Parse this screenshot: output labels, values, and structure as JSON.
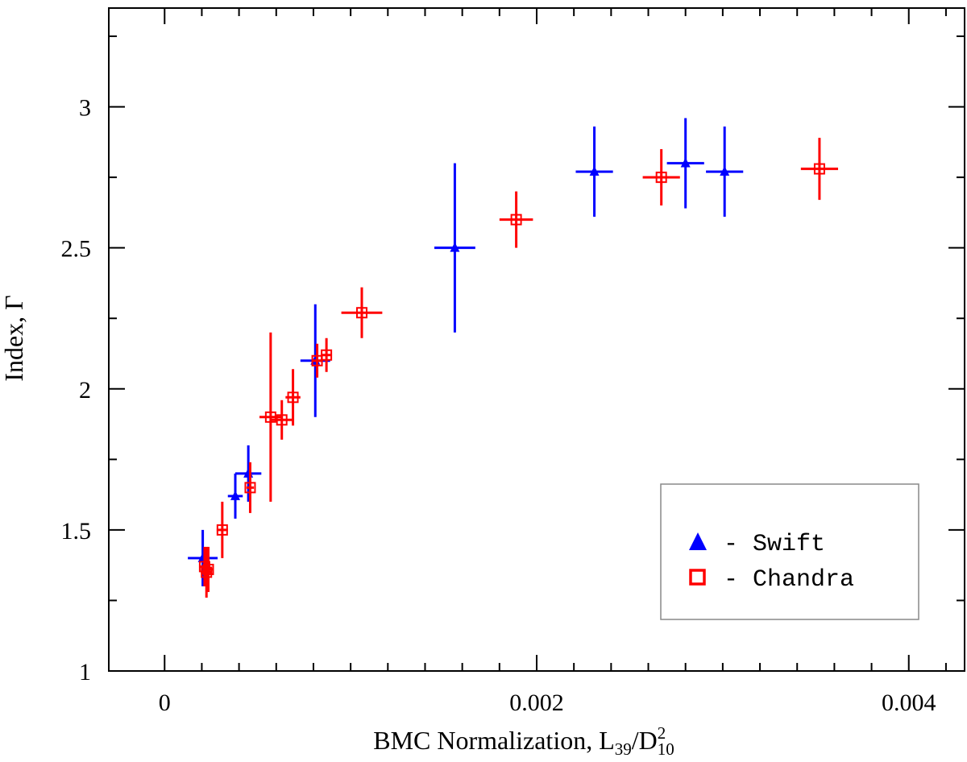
{
  "chart_data": {
    "type": "scatter",
    "title": "",
    "xlabel": "BMC Normalization, L39/D10^2",
    "xlabel_parts": {
      "prefix": "BMC Normalization, L",
      "sub1": "39",
      "slash": "/D",
      "sub2": "10",
      "sup2": "2"
    },
    "ylabel": "Index, Γ",
    "xlim": [
      -0.0003,
      0.0043
    ],
    "ylim": [
      1.0,
      3.35
    ],
    "xticks_major": [
      0,
      0.002,
      0.004
    ],
    "xtick_labels": [
      "0",
      "0.002",
      "0.004"
    ],
    "xticks_minor": [
      0.0002,
      0.0004,
      0.0006,
      0.0008,
      0.001,
      0.0012,
      0.0014,
      0.0016,
      0.0018,
      0.0022,
      0.0024,
      0.0026,
      0.0028,
      0.003,
      0.0032,
      0.0034,
      0.0036,
      0.0038,
      0.0042
    ],
    "yticks_major": [
      1,
      1.5,
      2,
      2.5,
      3
    ],
    "ytick_labels": [
      "1",
      "1.5",
      "2",
      "2.5",
      "3"
    ],
    "yticks_minor": [
      1.25,
      1.75,
      2.25,
      2.75,
      3.25
    ],
    "legend_position": "bottom-right",
    "series": [
      {
        "name": "Swift",
        "legend_label": "- Swift",
        "marker": "triangle",
        "color": "#0000ff",
        "points": [
          {
            "x": 0.000205,
            "y": 1.4,
            "xerr": 8e-05,
            "yerr": 0.1
          },
          {
            "x": 0.00038,
            "y": 1.62,
            "xerr": 4e-05,
            "yerr": 0.08
          },
          {
            "x": 0.00045,
            "y": 1.7,
            "xerr": 7e-05,
            "yerr": 0.1
          },
          {
            "x": 0.00081,
            "y": 2.1,
            "xerr": 8e-05,
            "yerr": 0.2
          },
          {
            "x": 0.00156,
            "y": 2.5,
            "xerr": 0.00011,
            "yerr": 0.3
          },
          {
            "x": 0.00231,
            "y": 2.77,
            "xerr": 0.0001,
            "yerr": 0.16
          },
          {
            "x": 0.0028,
            "y": 2.8,
            "xerr": 0.0001,
            "yerr": 0.16
          },
          {
            "x": 0.00301,
            "y": 2.77,
            "xerr": 0.0001,
            "yerr": 0.16
          }
        ]
      },
      {
        "name": "Chandra",
        "legend_label": "- Chandra",
        "marker": "square",
        "color": "#ff0000",
        "points": [
          {
            "x": 0.000215,
            "y": 1.37,
            "xerr": 3e-05,
            "yerr": 0.07
          },
          {
            "x": 0.000225,
            "y": 1.35,
            "xerr": 3e-05,
            "yerr": 0.09
          },
          {
            "x": 0.000235,
            "y": 1.36,
            "xerr": 3e-05,
            "yerr": 0.08
          },
          {
            "x": 0.00031,
            "y": 1.5,
            "xerr": 3e-05,
            "yerr": 0.1
          },
          {
            "x": 0.00046,
            "y": 1.65,
            "xerr": 2e-05,
            "yerr": 0.09
          },
          {
            "x": 0.00057,
            "y": 1.9,
            "xerr": 6e-05,
            "yerr": 0.3
          },
          {
            "x": 0.00063,
            "y": 1.89,
            "xerr": 6e-05,
            "yerr": 0.07
          },
          {
            "x": 0.00069,
            "y": 1.97,
            "xerr": 4e-05,
            "yerr": 0.1
          },
          {
            "x": 0.00082,
            "y": 2.1,
            "xerr": 3e-05,
            "yerr": 0.06
          },
          {
            "x": 0.00087,
            "y": 2.12,
            "xerr": 3e-05,
            "yerr": 0.06
          },
          {
            "x": 0.00106,
            "y": 2.27,
            "xerr": 0.00011,
            "yerr": 0.09
          },
          {
            "x": 0.00189,
            "y": 2.6,
            "xerr": 9e-05,
            "yerr": 0.1
          },
          {
            "x": 0.00267,
            "y": 2.75,
            "xerr": 0.0001,
            "yerr": 0.1
          },
          {
            "x": 0.00352,
            "y": 2.78,
            "xerr": 0.0001,
            "yerr": 0.11
          }
        ]
      }
    ]
  }
}
